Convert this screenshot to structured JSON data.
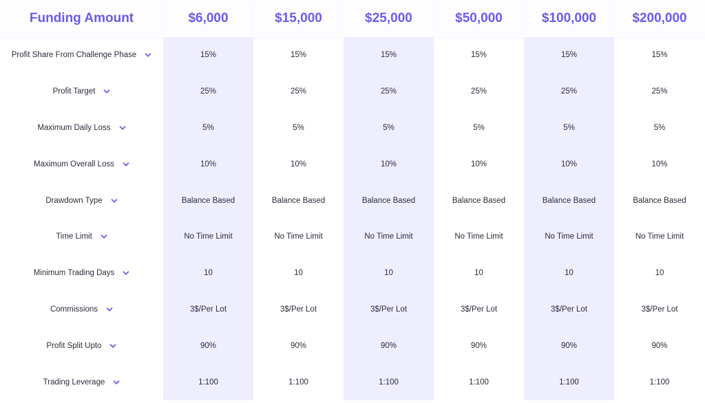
{
  "header": {
    "title": "Funding Amount",
    "amounts": [
      "$6,000",
      "$15,000",
      "$25,000",
      "$50,000",
      "$100,000",
      "$200,000"
    ]
  },
  "rows": [
    {
      "label": "Profit Share From Challenge Phase",
      "values": [
        "15%",
        "15%",
        "15%",
        "15%",
        "15%",
        "15%"
      ]
    },
    {
      "label": "Profit Target",
      "values": [
        "25%",
        "25%",
        "25%",
        "25%",
        "25%",
        "25%"
      ]
    },
    {
      "label": "Maximum Daily Loss",
      "values": [
        "5%",
        "5%",
        "5%",
        "5%",
        "5%",
        "5%"
      ]
    },
    {
      "label": "Maximum Overall Loss",
      "values": [
        "10%",
        "10%",
        "10%",
        "10%",
        "10%",
        "10%"
      ]
    },
    {
      "label": "Drawdown Type",
      "values": [
        "Balance Based",
        "Balance Based",
        "Balance Based",
        "Balance Based",
        "Balance Based",
        "Balance Based"
      ]
    },
    {
      "label": "Time Limit",
      "values": [
        "No Time Limit",
        "No Time Limit",
        "No Time Limit",
        "No Time Limit",
        "No Time Limit",
        "No Time Limit"
      ]
    },
    {
      "label": "Minimum Trading Days",
      "values": [
        "10",
        "10",
        "10",
        "10",
        "10",
        "10"
      ]
    },
    {
      "label": "Commissions",
      "values": [
        "3$/Per Lot",
        "3$/Per Lot",
        "3$/Per Lot",
        "3$/Per Lot",
        "3$/Per Lot",
        "3$/Per Lot"
      ]
    },
    {
      "label": "Profit Split Upto",
      "values": [
        "90%",
        "90%",
        "90%",
        "90%",
        "90%",
        "90%"
      ]
    },
    {
      "label": "Trading Leverage",
      "values": [
        "1:100",
        "1:100",
        "1:100",
        "1:100",
        "1:100",
        "1:100"
      ]
    }
  ],
  "icons": {
    "row_toggle": "chevron-down-icon"
  },
  "colors": {
    "accent": "#6b5ce7",
    "column_shade": "#efeeff",
    "text": "#2b2b3a"
  }
}
